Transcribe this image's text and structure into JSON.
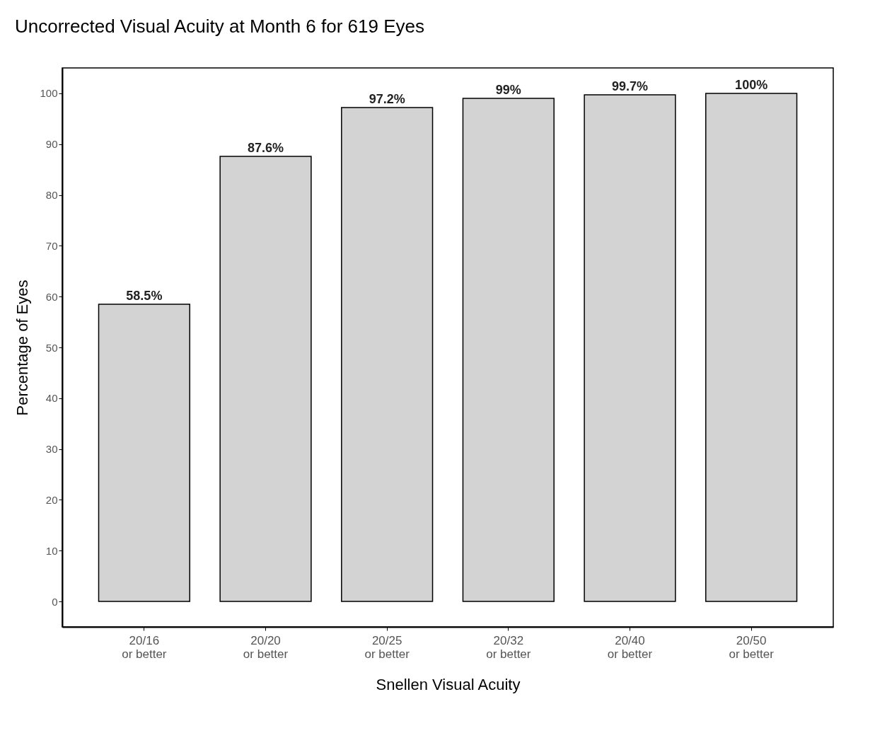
{
  "chart_data": {
    "type": "bar",
    "title": "Uncorrected Visual Acuity at Month 6 for 619 Eyes",
    "xlabel": "Snellen Visual Acuity",
    "ylabel": "Percentage of Eyes",
    "categories": [
      "20/16\nor better",
      "20/20\nor better",
      "20/25\nor better",
      "20/32\nor better",
      "20/40\nor better",
      "20/50\nor better"
    ],
    "values": [
      58.5,
      87.6,
      97.2,
      99,
      99.7,
      100
    ],
    "value_labels": [
      "58.5%",
      "87.6%",
      "97.2%",
      "99%",
      "99.7%",
      "100%"
    ],
    "color": "#d3d3d3",
    "ylim": [
      -5,
      105
    ],
    "yticks": [
      0,
      10,
      20,
      30,
      40,
      50,
      60,
      70,
      80,
      90,
      100
    ],
    "grid": false
  }
}
